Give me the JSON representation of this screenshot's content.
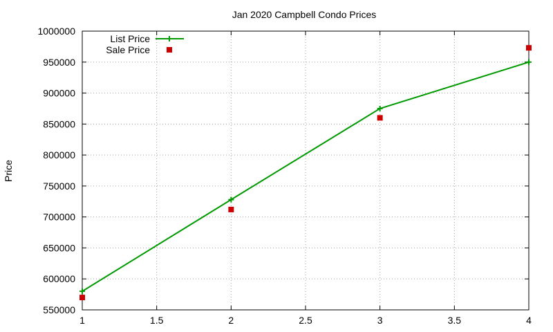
{
  "chart_data": {
    "type": "line",
    "title": "Jan 2020 Campbell Condo Prices",
    "xlabel": "",
    "ylabel": "Price",
    "xlim": [
      1,
      4
    ],
    "ylim": [
      550000,
      1000000
    ],
    "x_ticks": [
      "1",
      "1.5",
      "2",
      "2.5",
      "3",
      "3.5",
      "4"
    ],
    "y_ticks": [
      "550000",
      "600000",
      "650000",
      "700000",
      "750000",
      "800000",
      "850000",
      "900000",
      "950000",
      "1000000"
    ],
    "grid": true,
    "legend_position": "top-left",
    "x": [
      1,
      2,
      3,
      4
    ],
    "series": [
      {
        "name": "List Price",
        "style": "linespoints",
        "marker": "plus",
        "color": "#009900",
        "values": [
          580000,
          728000,
          875000,
          950000
        ]
      },
      {
        "name": "Sale Price",
        "style": "points",
        "marker": "square",
        "color": "#cc0000",
        "values": [
          570000,
          712000,
          860000,
          973000
        ]
      }
    ]
  }
}
